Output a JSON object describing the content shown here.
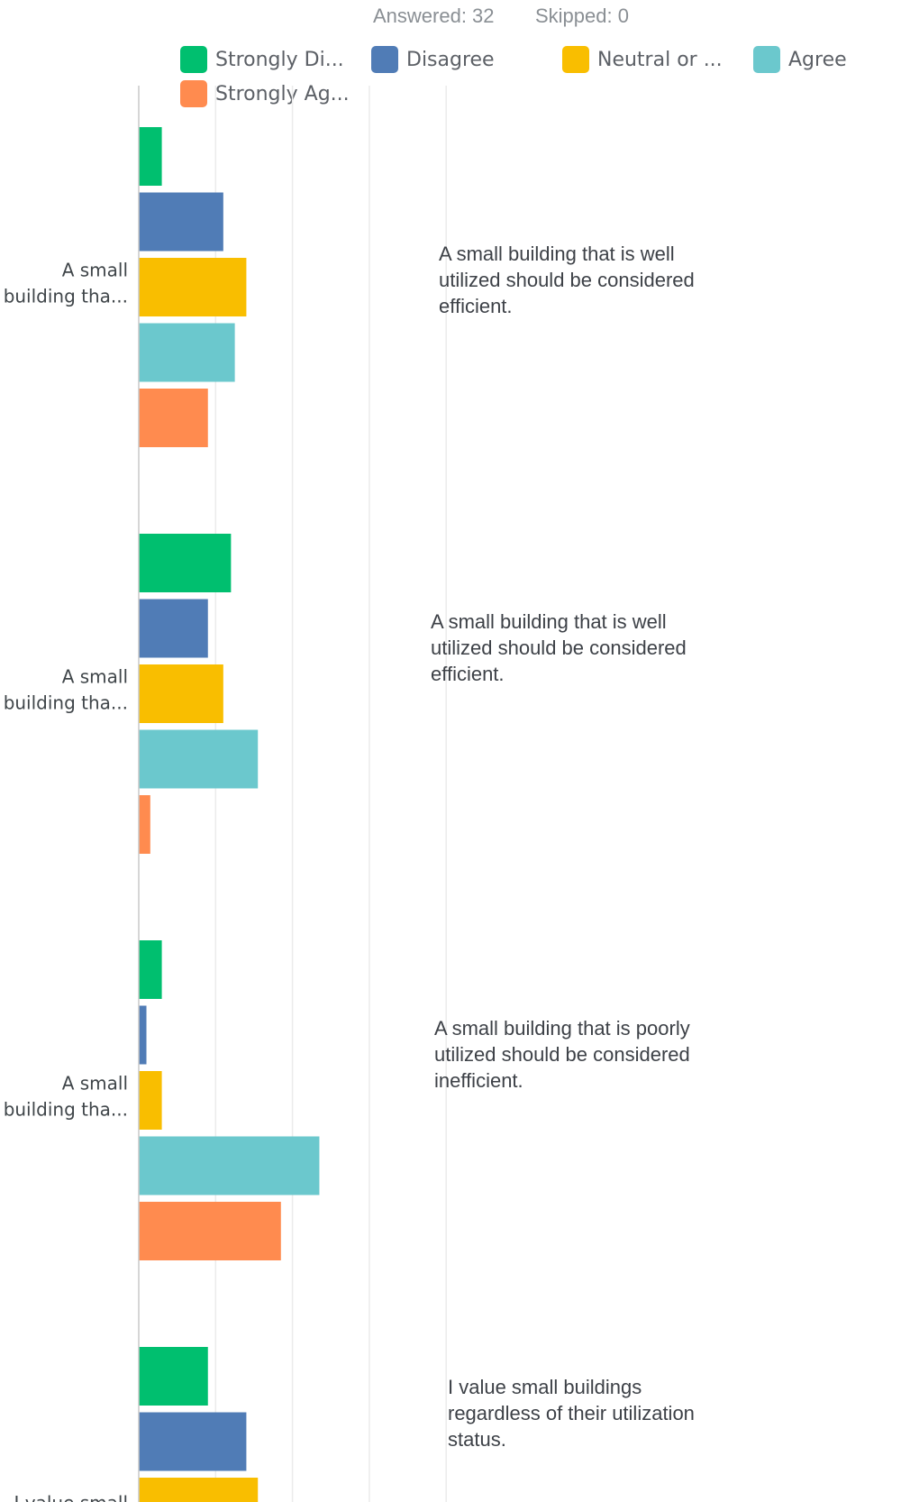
{
  "header": {
    "answered_label": "Answered: 32",
    "skipped_label": "Skipped: 0"
  },
  "legend": [
    {
      "label": "Strongly Di...",
      "color": "#00bf6f"
    },
    {
      "label": "Disagree",
      "color": "#507cb6"
    },
    {
      "label": "Neutral or ...",
      "color": "#f9be00"
    },
    {
      "label": "Agree",
      "color": "#6bc8cd"
    },
    {
      "label": "Strongly Ag...",
      "color": "#ff8b4f"
    }
  ],
  "chart_data": {
    "type": "bar",
    "orientation": "horizontal",
    "grid": true,
    "legend_position": "top",
    "categories": [
      [
        "A small",
        "building tha..."
      ],
      [
        "A small",
        "building tha..."
      ],
      [
        "A small",
        "building tha..."
      ],
      [
        "I value small"
      ]
    ],
    "tooltips": [
      [
        "A small building that is well",
        "utilized should be considered",
        "efficient."
      ],
      [
        "A small building that is well",
        "utilized should be considered",
        "efficient."
      ],
      [
        "A small building that is poorly",
        "utilized should be considered",
        "inefficient."
      ],
      [
        "I value small buildings",
        "regardless of their utilization",
        "status."
      ]
    ],
    "series": [
      {
        "name": "Strongly Di...",
        "values": [
          3,
          12,
          3,
          9
        ]
      },
      {
        "name": "Disagree",
        "values": [
          11,
          9,
          1,
          14
        ]
      },
      {
        "name": "Neutral or ...",
        "values": [
          14,
          11,
          3,
          15.5
        ]
      },
      {
        "name": "Agree",
        "values": [
          12.5,
          15.5,
          23.5,
          null
        ]
      },
      {
        "name": "Strongly Ag...",
        "values": [
          9,
          1.5,
          18.5,
          null
        ]
      }
    ],
    "xlim": [
      0,
      45
    ]
  }
}
